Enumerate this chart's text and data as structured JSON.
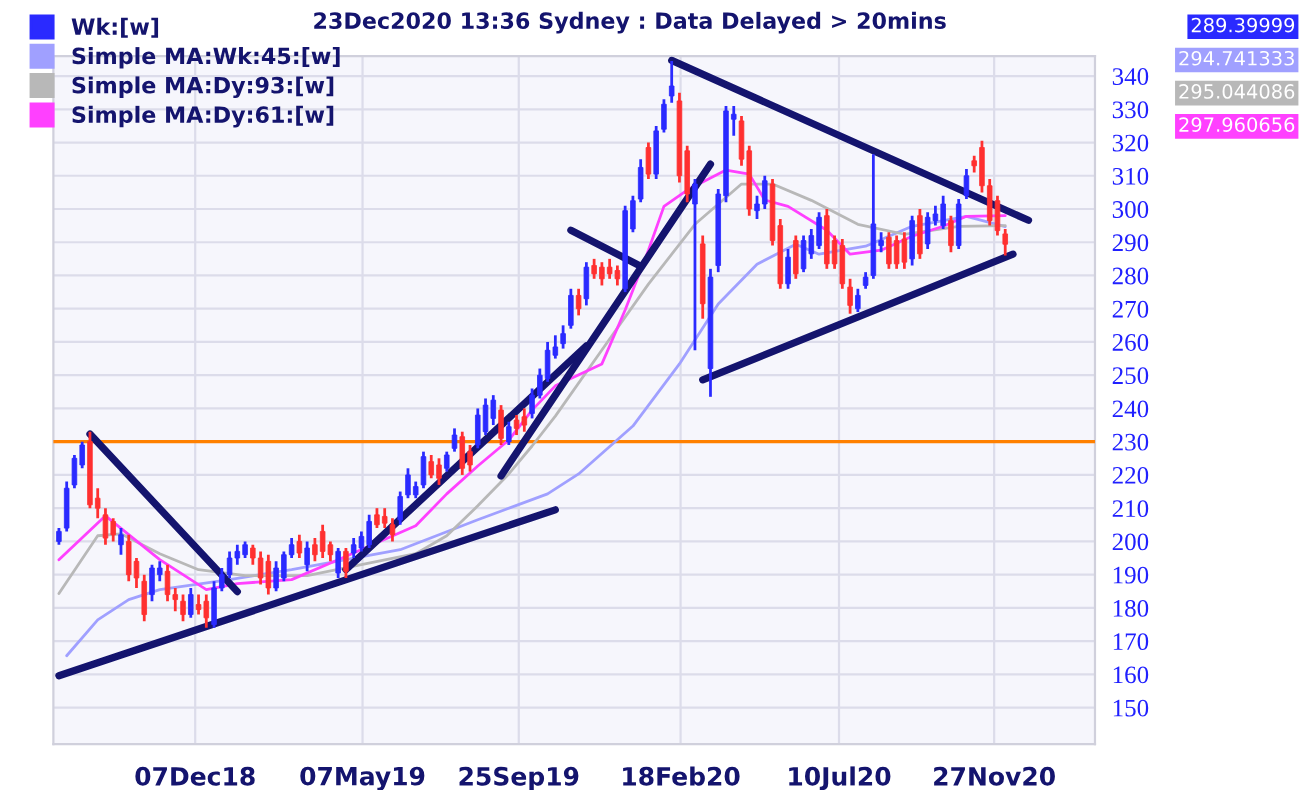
{
  "chart_data": {
    "type": "candlestick",
    "title": "23Dec2020 13:36 Sydney : Data Delayed > 20mins",
    "xlim": [
      "2018-08-01",
      "2021-02-26"
    ],
    "xticks": [
      {
        "value": "2018-12-07",
        "label": "07Dec18"
      },
      {
        "value": "2019-05-07",
        "label": "07May19"
      },
      {
        "value": "2019-09-25",
        "label": "25Sep19"
      },
      {
        "value": "2020-02-18",
        "label": "18Feb20"
      },
      {
        "value": "2020-07-10",
        "label": "10Jul20"
      },
      {
        "value": "2020-11-27",
        "label": "27Nov20"
      }
    ],
    "ylim": [
      139,
      346
    ],
    "yticks": [
      150,
      160,
      170,
      180,
      190,
      200,
      210,
      220,
      230,
      240,
      250,
      260,
      270,
      280,
      290,
      300,
      310,
      320,
      330,
      340
    ],
    "grid": true,
    "legend": "top left",
    "ref_lines": [
      {
        "axis": "y",
        "value": 230,
        "color": "#ff8000"
      }
    ],
    "annotations": [
      "289.39999",
      "294.741333",
      "295.044086",
      "297.960656"
    ],
    "series": [
      {
        "name": "Wk:[w]",
        "color": "#2a2aff",
        "x": [
          "2018-08-06",
          "2018-08-13",
          "2018-08-20",
          "2018-08-27",
          "2018-09-03",
          "2018-09-10",
          "2018-09-17",
          "2018-09-24",
          "2018-10-01",
          "2018-10-08",
          "2018-10-15",
          "2018-10-22",
          "2018-10-29",
          "2018-11-05",
          "2018-11-12",
          "2018-11-19",
          "2018-11-26",
          "2018-12-03",
          "2018-12-10",
          "2018-12-17",
          "2018-12-24",
          "2018-12-31",
          "2019-01-07",
          "2019-01-14",
          "2019-01-21",
          "2019-01-28",
          "2019-02-04",
          "2019-02-11",
          "2019-02-18",
          "2019-02-25",
          "2019-03-04",
          "2019-03-11",
          "2019-03-18",
          "2019-03-25",
          "2019-04-01",
          "2019-04-08",
          "2019-04-15",
          "2019-04-22",
          "2019-04-29",
          "2019-05-06",
          "2019-05-13",
          "2019-05-20",
          "2019-05-27",
          "2019-06-03",
          "2019-06-10",
          "2019-06-17",
          "2019-06-24",
          "2019-07-01",
          "2019-07-08",
          "2019-07-15",
          "2019-07-22",
          "2019-07-29",
          "2019-08-05",
          "2019-08-12",
          "2019-08-19",
          "2019-08-26",
          "2019-09-02",
          "2019-09-09",
          "2019-09-16",
          "2019-09-23",
          "2019-09-30",
          "2019-10-07",
          "2019-10-14",
          "2019-10-21",
          "2019-10-28",
          "2019-11-04",
          "2019-11-11",
          "2019-11-18",
          "2019-11-25",
          "2019-12-02",
          "2019-12-09",
          "2019-12-16",
          "2019-12-23",
          "2019-12-30",
          "2020-01-06",
          "2020-01-13",
          "2020-01-20",
          "2020-01-27",
          "2020-02-03",
          "2020-02-10",
          "2020-02-17",
          "2020-02-24",
          "2020-03-02",
          "2020-03-09",
          "2020-03-16",
          "2020-03-23",
          "2020-03-30",
          "2020-04-06",
          "2020-04-13",
          "2020-04-20",
          "2020-04-27",
          "2020-05-04",
          "2020-05-11",
          "2020-05-18",
          "2020-05-25",
          "2020-06-01",
          "2020-06-08",
          "2020-06-15",
          "2020-06-22",
          "2020-06-29",
          "2020-07-06",
          "2020-07-13",
          "2020-07-20",
          "2020-07-27",
          "2020-08-03",
          "2020-08-10",
          "2020-08-17",
          "2020-08-24",
          "2020-08-31",
          "2020-09-07",
          "2020-09-14",
          "2020-09-21",
          "2020-09-28",
          "2020-10-05",
          "2020-10-12",
          "2020-10-19",
          "2020-10-26",
          "2020-11-02",
          "2020-11-09",
          "2020-11-16",
          "2020-11-23",
          "2020-11-30",
          "2020-12-07"
        ],
        "ohlc": [
          [
            200,
            204,
            199,
            203
          ],
          [
            204,
            218,
            203,
            216
          ],
          [
            217,
            226,
            216,
            225
          ],
          [
            223,
            230,
            222,
            229
          ],
          [
            230,
            233,
            210,
            211
          ],
          [
            213,
            216,
            207,
            210
          ],
          [
            208,
            210,
            199,
            201
          ],
          [
            206,
            207,
            200,
            202
          ],
          [
            199,
            204,
            196,
            202
          ],
          [
            200,
            202,
            188,
            190
          ],
          [
            194,
            195,
            186,
            189
          ],
          [
            188,
            190,
            176,
            178
          ],
          [
            184,
            193,
            182,
            192
          ],
          [
            190,
            194,
            188,
            192
          ],
          [
            191,
            193,
            182,
            184
          ],
          [
            184,
            186,
            179,
            182.5
          ],
          [
            182,
            184,
            176,
            178
          ],
          [
            178,
            186,
            177,
            184
          ],
          [
            181,
            184,
            178,
            179.5
          ],
          [
            182,
            184,
            174,
            177
          ],
          [
            175,
            188,
            174,
            186
          ],
          [
            186,
            192,
            185,
            190
          ],
          [
            190,
            197,
            189,
            195
          ],
          [
            195,
            199,
            193,
            197
          ],
          [
            196,
            200,
            195,
            199
          ],
          [
            198,
            199,
            193,
            195
          ],
          [
            195,
            197,
            187,
            189
          ],
          [
            194,
            196,
            184,
            186
          ],
          [
            186,
            194,
            185,
            192
          ],
          [
            189,
            197,
            188,
            196
          ],
          [
            196,
            201,
            195,
            199
          ],
          [
            200,
            202,
            195,
            196.5
          ],
          [
            193,
            200,
            191,
            198
          ],
          [
            199,
            201,
            194,
            196
          ],
          [
            203,
            205,
            195,
            197
          ],
          [
            199,
            200,
            194,
            196
          ],
          [
            190.5,
            198,
            189,
            197
          ],
          [
            197,
            198,
            189,
            191
          ],
          [
            196.5,
            201,
            195,
            199
          ],
          [
            198,
            203,
            197,
            201.5
          ],
          [
            199,
            208,
            198,
            206
          ],
          [
            208,
            210,
            204,
            205
          ],
          [
            207.5,
            210,
            204,
            205.5
          ],
          [
            205,
            207,
            200,
            202
          ],
          [
            206.5,
            215,
            205,
            213.5
          ],
          [
            214,
            222,
            213,
            220
          ],
          [
            214,
            218,
            213,
            216.5
          ],
          [
            217,
            227,
            216,
            225.5
          ],
          [
            224,
            226,
            219,
            220
          ],
          [
            223,
            225,
            217,
            219
          ],
          [
            222,
            227,
            221,
            226
          ],
          [
            228,
            234,
            227,
            232
          ],
          [
            231.5,
            233,
            220,
            222
          ],
          [
            227,
            229,
            221,
            223
          ],
          [
            229,
            240,
            228,
            238
          ],
          [
            233,
            243,
            232,
            241
          ],
          [
            237,
            244,
            235,
            242.5
          ],
          [
            239.5,
            241,
            229,
            231
          ],
          [
            230,
            236,
            229,
            234.5
          ],
          [
            236.5,
            238,
            232,
            234
          ],
          [
            237.5,
            240,
            233,
            235
          ],
          [
            238.5,
            246,
            237,
            244
          ],
          [
            244,
            252,
            243,
            250
          ],
          [
            249,
            260,
            248,
            257.5
          ],
          [
            256,
            262,
            255,
            258.5
          ],
          [
            259.5,
            265,
            258,
            262.5
          ],
          [
            265,
            276,
            264,
            274
          ],
          [
            274,
            276,
            268,
            270
          ],
          [
            273,
            284,
            271,
            282.5
          ],
          [
            283,
            285,
            279,
            280.5
          ],
          [
            282.5,
            284,
            277,
            279
          ],
          [
            282.5,
            285,
            279,
            280.5
          ],
          [
            281.5,
            283,
            277,
            279
          ],
          [
            276,
            301,
            275,
            299.5
          ],
          [
            294,
            304,
            293,
            302.5
          ],
          [
            303,
            315,
            302,
            312.5
          ],
          [
            318.5,
            320,
            309,
            310.5
          ],
          [
            310.5,
            325,
            309,
            323.5
          ],
          [
            324,
            333,
            323,
            331.5
          ],
          [
            334,
            344.5,
            332,
            337
          ],
          [
            332.5,
            335,
            308,
            310
          ],
          [
            317.5,
            319,
            302,
            304.5
          ],
          [
            301.5,
            309,
            257.5,
            307.5
          ],
          [
            289.5,
            292,
            267,
            271.5
          ],
          [
            252,
            282,
            243.5,
            279.5
          ],
          [
            283,
            306,
            281,
            304.5
          ],
          [
            304,
            331,
            302,
            329.5
          ],
          [
            327,
            331,
            322,
            328.5
          ],
          [
            326.5,
            328,
            313,
            315
          ],
          [
            317.5,
            319,
            298,
            300
          ],
          [
            299.5,
            304,
            297,
            301.5
          ],
          [
            301.5,
            310,
            300,
            308.5
          ],
          [
            307.5,
            309,
            289,
            290.5
          ],
          [
            295,
            297,
            276,
            277.5
          ],
          [
            277.5,
            288,
            276,
            285.5
          ],
          [
            290.5,
            292,
            279,
            280.5
          ],
          [
            282,
            292,
            281,
            290.5
          ],
          [
            286.5,
            294,
            285,
            292
          ],
          [
            289,
            299,
            288,
            297.5
          ],
          [
            298,
            300,
            282,
            283.5
          ],
          [
            290.5,
            292,
            282,
            283.5
          ],
          [
            289,
            291,
            276,
            277.5
          ],
          [
            276.5,
            279,
            268.5,
            271
          ],
          [
            270,
            276,
            269,
            274
          ],
          [
            277,
            281,
            276,
            279.5
          ],
          [
            280,
            316.5,
            279,
            295.5
          ],
          [
            289,
            293,
            287,
            290.5
          ],
          [
            291.5,
            293,
            282,
            283.5
          ],
          [
            290.5,
            292,
            282,
            283.5
          ],
          [
            291,
            293,
            282,
            284
          ],
          [
            285,
            298,
            283,
            296.5
          ],
          [
            298,
            300,
            285,
            286.5
          ],
          [
            289.5,
            299,
            288,
            297.5
          ],
          [
            296.5,
            301,
            295,
            298.5
          ],
          [
            295,
            304,
            294,
            301.5
          ],
          [
            296.5,
            298,
            287,
            289
          ],
          [
            289,
            303,
            288,
            301.5
          ],
          [
            304,
            312,
            303,
            310
          ],
          [
            314.5,
            316,
            311,
            313
          ],
          [
            318.5,
            320.5,
            305,
            307
          ],
          [
            307,
            309,
            295,
            296.5
          ],
          [
            302.5,
            304,
            292,
            293.5
          ],
          [
            292.5,
            294,
            286,
            289.4
          ]
        ],
        "colors": [
          "#2a2aff",
          "#2a2aff",
          "#2a2aff",
          "#2a2aff",
          "#ff3030",
          "#ff3030",
          "#ff3030",
          "#ff3030",
          "#2a2aff",
          "#ff3030",
          "#ff3030",
          "#ff3030",
          "#2a2aff",
          "#2a2aff",
          "#ff3030",
          "#ff3030",
          "#ff3030",
          "#2a2aff",
          "#ff3030",
          "#ff3030",
          "#2a2aff",
          "#2a2aff",
          "#2a2aff",
          "#2a2aff",
          "#2a2aff",
          "#ff3030",
          "#ff3030",
          "#ff3030",
          "#2a2aff",
          "#2a2aff",
          "#2a2aff",
          "#ff3030",
          "#2a2aff",
          "#ff3030",
          "#ff3030",
          "#ff3030",
          "#2a2aff",
          "#ff3030",
          "#2a2aff",
          "#2a2aff",
          "#2a2aff",
          "#ff3030",
          "#ff3030",
          "#ff3030",
          "#2a2aff",
          "#2a2aff",
          "#2a2aff",
          "#2a2aff",
          "#ff3030",
          "#ff3030",
          "#2a2aff",
          "#2a2aff",
          "#ff3030",
          "#ff3030",
          "#2a2aff",
          "#2a2aff",
          "#2a2aff",
          "#ff3030",
          "#2a2aff",
          "#ff3030",
          "#ff3030",
          "#2a2aff",
          "#2a2aff",
          "#2a2aff",
          "#2a2aff",
          "#2a2aff",
          "#2a2aff",
          "#ff3030",
          "#2a2aff",
          "#ff3030",
          "#ff3030",
          "#ff3030",
          "#ff3030",
          "#2a2aff",
          "#2a2aff",
          "#2a2aff",
          "#ff3030",
          "#2a2aff",
          "#2a2aff",
          "#2a2aff",
          "#ff3030",
          "#ff3030",
          "#2a2aff",
          "#ff3030",
          "#2a2aff",
          "#2a2aff",
          "#2a2aff",
          "#2a2aff",
          "#ff3030",
          "#ff3030",
          "#2a2aff",
          "#2a2aff",
          "#ff3030",
          "#ff3030",
          "#2a2aff",
          "#ff3030",
          "#2a2aff",
          "#2a2aff",
          "#2a2aff",
          "#ff3030",
          "#ff3030",
          "#ff3030",
          "#ff3030",
          "#2a2aff",
          "#2a2aff",
          "#2a2aff",
          "#2a2aff",
          "#ff3030",
          "#ff3030",
          "#ff3030",
          "#2a2aff",
          "#ff3030",
          "#2a2aff",
          "#2a2aff",
          "#2a2aff",
          "#ff3030",
          "#2a2aff",
          "#2a2aff",
          "#ff3030",
          "#ff3030",
          "#ff3030",
          "#ff3030",
          "#ff3030"
        ]
      },
      {
        "type": "line",
        "name": "Simple MA:Wk:45:[w]",
        "color": "#a0a0ff",
        "x": [
          "2018-08-13",
          "2018-09-10",
          "2018-10-08",
          "2018-11-05",
          "2019-01-07",
          "2019-03-04",
          "2019-06-10",
          "2019-08-19",
          "2019-10-21",
          "2019-11-18",
          "2020-01-06",
          "2020-02-17",
          "2020-03-23",
          "2020-04-27",
          "2020-06-01",
          "2020-06-22",
          "2020-08-03",
          "2020-09-14",
          "2020-11-02",
          "2020-12-07"
        ],
        "values": [
          165.6,
          176.4,
          182.5,
          185.5,
          188.5,
          191.5,
          197.5,
          206.5,
          214.3,
          220.3,
          234.7,
          253.4,
          271.4,
          283.4,
          289.4,
          286.4,
          288.8,
          294.8,
          297.8,
          294.7
        ]
      },
      {
        "type": "line",
        "name": "Simple MA:Dy:93:[w]",
        "color": "#b8b8b8",
        "x": [
          "2018-08-06",
          "2018-09-10",
          "2018-10-01",
          "2018-11-05",
          "2018-12-10",
          "2019-01-21",
          "2019-03-18",
          "2019-06-24",
          "2019-07-22",
          "2019-08-19",
          "2019-09-16",
          "2019-10-07",
          "2019-10-28",
          "2019-12-09",
          "2020-01-20",
          "2020-03-02",
          "2020-04-13",
          "2020-05-11",
          "2020-06-15",
          "2020-07-27",
          "2020-09-07",
          "2020-10-26",
          "2020-12-07"
        ],
        "values": [
          184.3,
          201.7,
          202.3,
          196.3,
          191.5,
          189.7,
          189.7,
          196.3,
          201.7,
          210.7,
          220.3,
          228.7,
          237.7,
          257.6,
          277.4,
          295.4,
          307.5,
          307.5,
          302.6,
          295.4,
          292.4,
          294.8,
          295.0
        ]
      },
      {
        "type": "line",
        "name": "Simple MA:Dy:61:[w]",
        "color": "#ff40ff",
        "x": [
          "2018-08-06",
          "2018-09-17",
          "2018-11-05",
          "2018-12-17",
          "2019-01-14",
          "2019-03-04",
          "2019-04-15",
          "2019-06-24",
          "2019-07-22",
          "2019-08-19",
          "2019-09-16",
          "2019-10-07",
          "2019-10-28",
          "2019-12-09",
          "2019-12-30",
          "2020-01-20",
          "2020-02-03",
          "2020-02-24",
          "2020-03-30",
          "2020-04-20",
          "2020-05-04",
          "2020-05-25",
          "2020-06-29",
          "2020-07-20",
          "2020-08-17",
          "2020-09-14",
          "2020-10-12",
          "2020-11-02",
          "2020-12-07"
        ],
        "values": [
          194.5,
          207.7,
          194.5,
          185.5,
          187.3,
          188.5,
          194.5,
          204.7,
          214.3,
          222.7,
          230.5,
          239.5,
          246.8,
          253.4,
          269.6,
          287.6,
          300.8,
          305.7,
          311.7,
          310.5,
          302.7,
          300.8,
          293.6,
          286.4,
          287.6,
          291.8,
          294.8,
          297.8,
          298.0
        ]
      },
      {
        "type": "line",
        "color": "#14146e",
        "x": [
          "2018-09-03",
          "2019-01-14"
        ],
        "values": [
          232.3,
          184.9
        ]
      },
      {
        "type": "line",
        "color": "#14146e",
        "x": [
          "2018-08-06",
          "2019-10-28"
        ],
        "values": [
          159.6,
          209.5
        ]
      },
      {
        "type": "line",
        "color": "#14146e",
        "x": [
          "2019-04-22",
          "2019-11-25"
        ],
        "values": [
          191.5,
          258.8
        ]
      },
      {
        "type": "line",
        "color": "#14146e",
        "x": [
          "2019-09-09",
          "2020-03-16"
        ],
        "values": [
          219.7,
          313.5
        ]
      },
      {
        "type": "line",
        "color": "#14146e",
        "x": [
          "2019-11-11",
          "2020-01-13"
        ],
        "values": [
          293.6,
          282.8
        ]
      },
      {
        "type": "line",
        "color": "#14146e",
        "x": [
          "2020-02-10",
          "2020-12-28"
        ],
        "values": [
          344.7,
          296.6
        ]
      },
      {
        "type": "line",
        "color": "#14146e",
        "x": [
          "2020-03-09",
          "2020-12-14"
        ],
        "values": [
          248.6,
          286.4
        ]
      }
    ]
  }
}
